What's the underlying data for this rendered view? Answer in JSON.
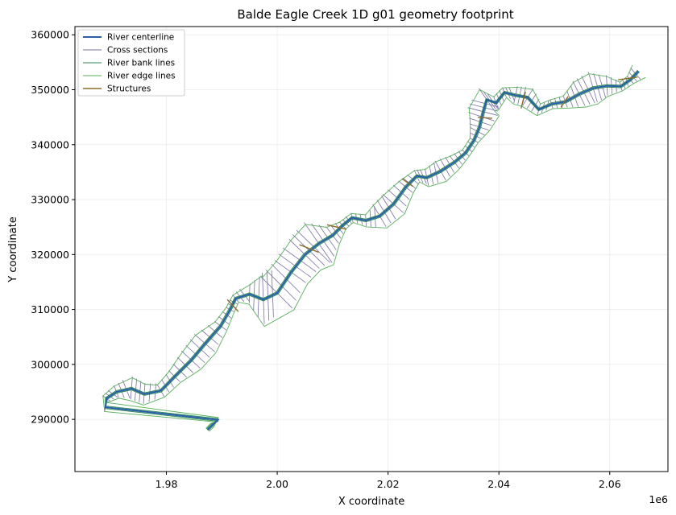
{
  "chart_data": {
    "type": "line",
    "title": "Balde Eagle Creek 1D g01 geometry footprint",
    "xlabel": "X coordinate",
    "ylabel": "Y coordinate",
    "x_offset_label": "1e6",
    "xlim": [
      1.9635,
      2.0705
    ],
    "ylim": [
      280500,
      361500
    ],
    "xticks": [
      1.98,
      2.0,
      2.02,
      2.04,
      2.06
    ],
    "xtick_labels": [
      "1.98",
      "2.00",
      "2.02",
      "2.04",
      "2.06"
    ],
    "yticks": [
      290000,
      300000,
      310000,
      320000,
      330000,
      340000,
      350000,
      360000
    ],
    "ytick_labels": [
      "290000",
      "300000",
      "310000",
      "320000",
      "330000",
      "340000",
      "350000",
      "360000"
    ],
    "grid": true,
    "legend_position": "upper-left",
    "series": [
      {
        "name": "River centerline",
        "color": "#2a5ea8",
        "width": 2.0
      },
      {
        "name": "Cross sections",
        "color": "#7a6fa6",
        "width": 0.8
      },
      {
        "name": "River bank lines",
        "color": "#2e8b57",
        "width": 1.0
      },
      {
        "name": "River edge lines",
        "color": "#55b05a",
        "width": 0.9
      },
      {
        "name": "Structures",
        "color": "#8b6b2a",
        "width": 1.4
      }
    ],
    "centerline": [
      [
        1.9874,
        288100
      ],
      [
        1.9883,
        289000
      ],
      [
        1.9893,
        289900
      ],
      [
        1.969,
        292200
      ],
      [
        1.9692,
        293800
      ],
      [
        1.971,
        295000
      ],
      [
        1.9737,
        295600
      ],
      [
        1.976,
        294600
      ],
      [
        1.979,
        295200
      ],
      [
        1.9815,
        297800
      ],
      [
        1.9845,
        300800
      ],
      [
        1.987,
        303800
      ],
      [
        1.9898,
        307000
      ],
      [
        1.9915,
        310000
      ],
      [
        1.9925,
        312000
      ],
      [
        1.995,
        312800
      ],
      [
        1.9975,
        311800
      ],
      [
        2.0,
        313000
      ],
      [
        2.0025,
        316800
      ],
      [
        2.005,
        320000
      ],
      [
        2.0075,
        322000
      ],
      [
        2.01,
        323500
      ],
      [
        2.0118,
        325300
      ],
      [
        2.0135,
        326700
      ],
      [
        2.016,
        326200
      ],
      [
        2.0185,
        327000
      ],
      [
        2.021,
        329200
      ],
      [
        2.0232,
        332300
      ],
      [
        2.0252,
        334300
      ],
      [
        2.027,
        334000
      ],
      [
        2.0295,
        335200
      ],
      [
        2.032,
        336800
      ],
      [
        2.034,
        338500
      ],
      [
        2.0355,
        340800
      ],
      [
        2.0365,
        343200
      ],
      [
        2.0372,
        346000
      ],
      [
        2.0378,
        348200
      ],
      [
        2.0395,
        347600
      ],
      [
        2.041,
        349500
      ],
      [
        2.043,
        349000
      ],
      [
        2.0452,
        348600
      ],
      [
        2.0472,
        346400
      ],
      [
        2.0495,
        347400
      ],
      [
        2.052,
        347800
      ],
      [
        2.0545,
        349200
      ],
      [
        2.057,
        350300
      ],
      [
        2.0595,
        350700
      ],
      [
        2.062,
        350600
      ],
      [
        2.0637,
        351800
      ],
      [
        2.0652,
        353400
      ]
    ],
    "structures": [
      [
        [
          1.991,
          311800
        ],
        [
          1.993,
          309600
        ]
      ],
      [
        [
          2.004,
          321800
        ],
        [
          2.0075,
          320400
        ]
      ],
      [
        [
          2.009,
          325400
        ],
        [
          2.0125,
          324600
        ]
      ],
      [
        [
          2.0225,
          333800
        ],
        [
          2.0245,
          332400
        ]
      ],
      [
        [
          2.0362,
          345000
        ],
        [
          2.0388,
          344800
        ]
      ],
      [
        [
          2.044,
          346600
        ],
        [
          2.0448,
          349600
        ]
      ],
      [
        [
          2.0512,
          346800
        ],
        [
          2.0525,
          348800
        ]
      ],
      [
        [
          2.0615,
          351800
        ],
        [
          2.065,
          352300
        ]
      ]
    ]
  }
}
